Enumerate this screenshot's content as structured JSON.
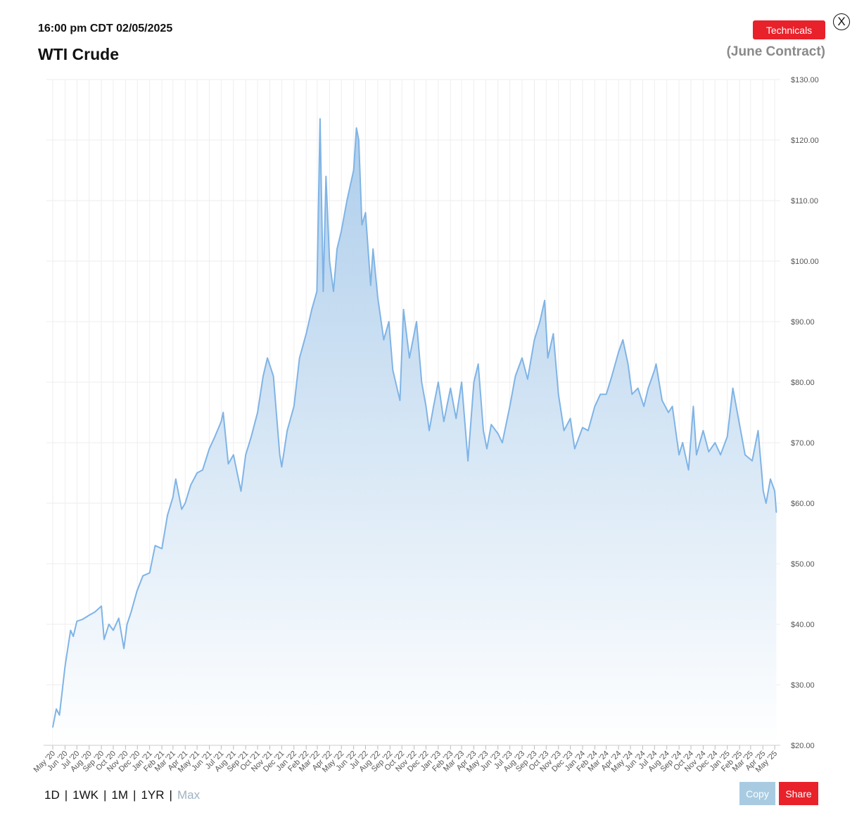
{
  "header": {
    "timestamp": "16:00 pm CDT 02/05/2025",
    "title": "WTI Crude",
    "contract": "(June Contract)",
    "technicals_label": "Technicals",
    "close_label": "X"
  },
  "footer": {
    "ranges": [
      {
        "label": "1D",
        "active": false
      },
      {
        "label": "1WK",
        "active": false
      },
      {
        "label": "1M",
        "active": false
      },
      {
        "label": "1YR",
        "active": false
      },
      {
        "label": "Max",
        "active": true
      }
    ],
    "copy_label": "Copy",
    "share_label": "Share"
  },
  "colors": {
    "line": "#7fb4e6",
    "fill_top": "#a9cbea",
    "fill_bottom": "#ffffff",
    "grid": "#eeeeee",
    "axis_text": "#555555",
    "accent_red": "#e8212a",
    "copy_blue": "#a8cbe2"
  },
  "chart_data": {
    "type": "area",
    "title": "WTI Crude",
    "xlabel": "",
    "ylabel": "",
    "ylim": [
      20,
      130
    ],
    "yticks": [
      20,
      30,
      40,
      50,
      60,
      70,
      80,
      90,
      100,
      110,
      120,
      130
    ],
    "ytick_labels": [
      "$20.00",
      "$30.00",
      "$40.00",
      "$50.00",
      "$60.00",
      "$70.00",
      "$80.00",
      "$90.00",
      "$100.00",
      "$110.00",
      "$120.00",
      "$130.00"
    ],
    "y_axis_position": "right",
    "grid": true,
    "legend": "none",
    "x_tick_labels": [
      "May '20",
      "Jun '20",
      "Jul '20",
      "Aug '20",
      "Sep '20",
      "Oct '20",
      "Nov '20",
      "Dec '20",
      "Jan '21",
      "Feb '21",
      "Mar '21",
      "Apr '21",
      "May '21",
      "Jun '21",
      "Jul '21",
      "Aug '21",
      "Sep '21",
      "Oct '21",
      "Nov '21",
      "Dec '21",
      "Jan '22",
      "Feb '22",
      "Mar '22",
      "Apr '22",
      "May '22",
      "Jun '22",
      "Jul '22",
      "Aug '22",
      "Sep '22",
      "Oct '22",
      "Nov '22",
      "Dec '22",
      "Jan '23",
      "Feb '23",
      "Mar '23",
      "Apr '23",
      "May '23",
      "Jun '23",
      "Jul '23",
      "Aug '23",
      "Sep '23",
      "Oct '23",
      "Nov '23",
      "Dec '23",
      "Jan '24",
      "Feb '24",
      "Mar '24",
      "Apr '24",
      "May '24",
      "Jun '24",
      "Jul '24",
      "Aug '24",
      "Sep '24",
      "Oct '24",
      "Nov '24",
      "Dec '24",
      "Jan '25",
      "Feb '25",
      "Mar '25",
      "Apr '25",
      "May '25"
    ],
    "series": [
      {
        "x": [
          "2020-05-01",
          "2020-05-10",
          "2020-05-18",
          "2020-06-01",
          "2020-06-08",
          "2020-06-15",
          "2020-06-22",
          "2020-07-01",
          "2020-07-15",
          "2020-08-01",
          "2020-08-15",
          "2020-09-01",
          "2020-09-08",
          "2020-09-20",
          "2020-10-01",
          "2020-10-15",
          "2020-10-28",
          "2020-11-05",
          "2020-11-15",
          "2020-11-30",
          "2020-12-15",
          "2021-01-01",
          "2021-01-15",
          "2021-02-01",
          "2021-02-15",
          "2021-03-01",
          "2021-03-08",
          "2021-03-23",
          "2021-04-01",
          "2021-04-15",
          "2021-05-01",
          "2021-05-15",
          "2021-06-01",
          "2021-06-15",
          "2021-07-01",
          "2021-07-06",
          "2021-07-19",
          "2021-08-01",
          "2021-08-20",
          "2021-09-01",
          "2021-09-15",
          "2021-10-01",
          "2021-10-15",
          "2021-10-26",
          "2021-11-10",
          "2021-11-26",
          "2021-12-01",
          "2021-12-15",
          "2022-01-01",
          "2022-01-15",
          "2022-02-01",
          "2022-02-15",
          "2022-02-28",
          "2022-03-08",
          "2022-03-16",
          "2022-03-23",
          "2022-04-01",
          "2022-04-11",
          "2022-04-20",
          "2022-05-01",
          "2022-05-15",
          "2022-06-01",
          "2022-06-08",
          "2022-06-14",
          "2022-06-22",
          "2022-07-01",
          "2022-07-14",
          "2022-07-20",
          "2022-08-01",
          "2022-08-16",
          "2022-08-29",
          "2022-09-08",
          "2022-09-26",
          "2022-10-05",
          "2022-10-20",
          "2022-11-07",
          "2022-11-20",
          "2022-12-01",
          "2022-12-09",
          "2022-12-20",
          "2023-01-01",
          "2023-01-15",
          "2023-02-01",
          "2023-02-15",
          "2023-03-01",
          "2023-03-17",
          "2023-04-01",
          "2023-04-12",
          "2023-04-25",
          "2023-05-04",
          "2023-05-15",
          "2023-06-01",
          "2023-06-12",
          "2023-07-01",
          "2023-07-15",
          "2023-08-01",
          "2023-08-15",
          "2023-09-01",
          "2023-09-15",
          "2023-09-27",
          "2023-10-05",
          "2023-10-19",
          "2023-11-01",
          "2023-11-15",
          "2023-12-01",
          "2023-12-12",
          "2024-01-01",
          "2024-01-15",
          "2024-02-01",
          "2024-02-15",
          "2024-03-01",
          "2024-03-15",
          "2024-04-01",
          "2024-04-12",
          "2024-04-25",
          "2024-05-05",
          "2024-05-20",
          "2024-06-04",
          "2024-06-15",
          "2024-07-01",
          "2024-07-05",
          "2024-07-20",
          "2024-08-05",
          "2024-08-15",
          "2024-09-01",
          "2024-09-10",
          "2024-09-25",
          "2024-10-07",
          "2024-10-15",
          "2024-11-01",
          "2024-11-15",
          "2024-12-01",
          "2024-12-15",
          "2025-01-01",
          "2025-01-15",
          "2025-02-01",
          "2025-02-15",
          "2025-03-05",
          "2025-03-20",
          "2025-04-02",
          "2025-04-09",
          "2025-04-20",
          "2025-05-01",
          "2025-05-05"
        ],
        "values": [
          23,
          26,
          25,
          33,
          36,
          39,
          38,
          40.5,
          40.8,
          41.5,
          42,
          43,
          37.5,
          40,
          39,
          41,
          36,
          40,
          42,
          45.5,
          48,
          48.5,
          53,
          52.5,
          58,
          61,
          64,
          59,
          60,
          63,
          65,
          65.5,
          69,
          71,
          73.5,
          75,
          66.5,
          68,
          62,
          68,
          71,
          75,
          81,
          84,
          81,
          68,
          66,
          72,
          76,
          84,
          88,
          92,
          95,
          123.5,
          95,
          114,
          100,
          95,
          102,
          105,
          110,
          115,
          122,
          120,
          106,
          108,
          96,
          102,
          94,
          87,
          90,
          82,
          77,
          92,
          84,
          90,
          80,
          76,
          72,
          76,
          80,
          73.5,
          79,
          74,
          80,
          67,
          80,
          83,
          72,
          69,
          73,
          71.5,
          70,
          76,
          81,
          84,
          80.5,
          87,
          90,
          93.5,
          84,
          88,
          78,
          72,
          74,
          69,
          72.5,
          72,
          76,
          78,
          78,
          81,
          85,
          87,
          83,
          78,
          79,
          76,
          79,
          82,
          83,
          77,
          75,
          76,
          68,
          70,
          65.5,
          76,
          68,
          72,
          68.5,
          70,
          68,
          71,
          79,
          73,
          68,
          67,
          72,
          62,
          60,
          64,
          62,
          58.5
        ]
      }
    ]
  }
}
